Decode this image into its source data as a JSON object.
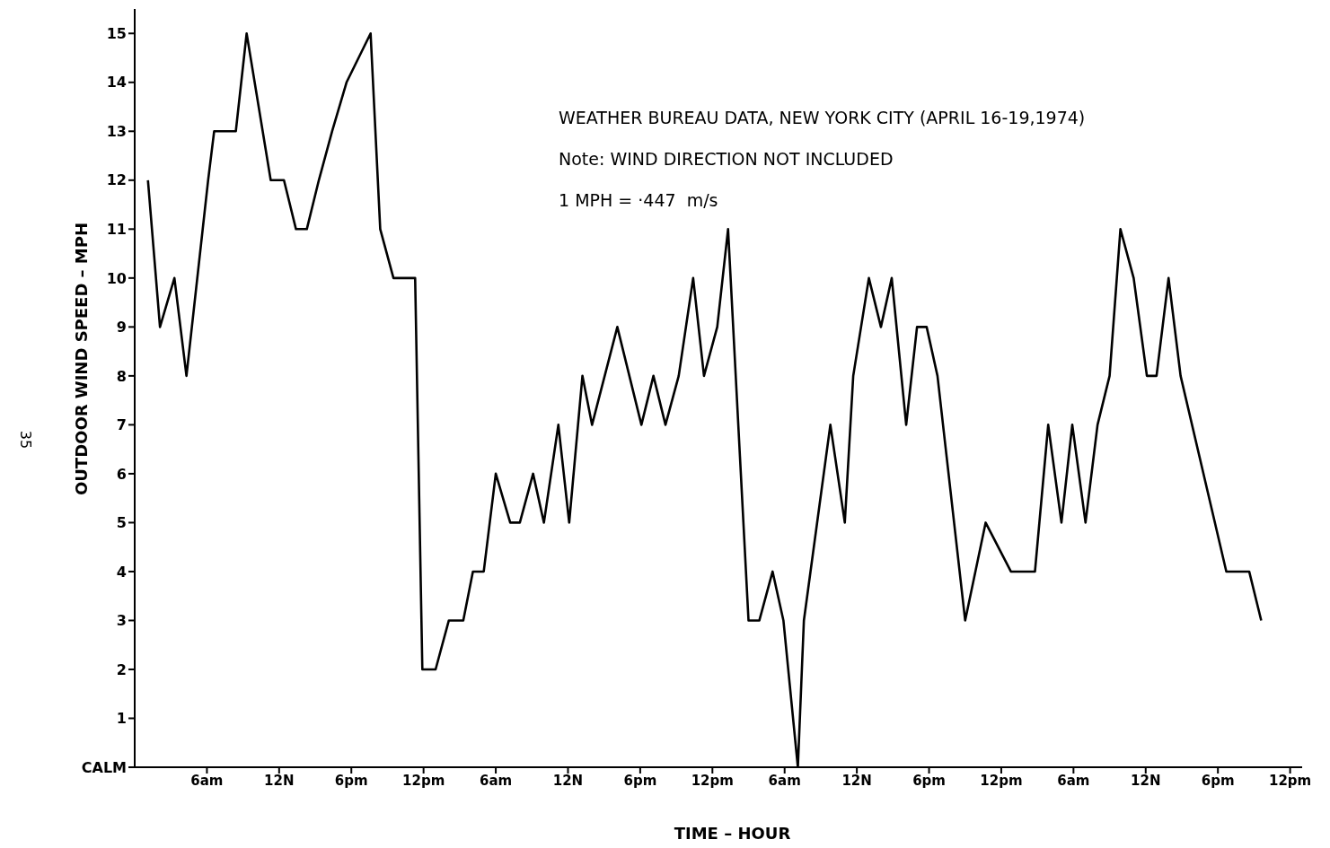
{
  "chart_data": {
    "type": "line",
    "xlabel": "TIME – HOUR",
    "ylabel": "OUTDOOR WIND SPEED – MPH",
    "annotations": [
      "WEATHER BUREAU DATA, NEW YORK CITY (APRIL 16-19,1974)",
      "Note: WIND DIRECTION NOT INCLUDED",
      "1 MPH = ·447  m/s",
      "35"
    ],
    "x": [
      "1974-04-16T01:06",
      "1974-04-16T02:06",
      "1974-04-16T03:18",
      "1974-04-16T04:18",
      "1974-04-16T06:06",
      "1974-04-16T06:36",
      "1974-04-16T08:24",
      "1974-04-16T09:18",
      "1974-04-16T11:18",
      "1974-04-16T12:24",
      "1974-04-16T13:24",
      "1974-04-16T14:18",
      "1974-04-16T15:18",
      "1974-04-16T16:24",
      "1974-04-16T17:36",
      "1974-04-16T19:36",
      "1974-04-16T20:24",
      "1974-04-16T21:30",
      "1974-04-16T23:18",
      "1974-04-16T23:54",
      "1974-04-17T01:00",
      "1974-04-17T02:06",
      "1974-04-17T03:18",
      "1974-04-17T04:06",
      "1974-04-17T05:00",
      "1974-04-17T06:00",
      "1974-04-17T07:12",
      "1974-04-17T08:00",
      "1974-04-17T09:06",
      "1974-04-17T10:00",
      "1974-04-17T11:12",
      "1974-04-17T12:06",
      "1974-04-17T13:12",
      "1974-04-17T14:00",
      "1974-04-17T16:06",
      "1974-04-17T18:06",
      "1974-04-17T19:06",
      "1974-04-17T20:06",
      "1974-04-17T21:12",
      "1974-04-17T22:24",
      "1974-04-17T23:18",
      "1974-04-18T00:24",
      "1974-04-18T01:18",
      "1974-04-18T03:00",
      "1974-04-18T03:54",
      "1974-04-18T05:00",
      "1974-04-18T05:54",
      "1974-04-18T07:06",
      "1974-04-18T07:36",
      "1974-04-18T09:48",
      "1974-04-18T11:00",
      "1974-04-18T11:42",
      "1974-04-18T13:00",
      "1974-04-18T14:00",
      "1974-04-18T14:54",
      "1974-04-18T16:06",
      "1974-04-18T17:00",
      "1974-04-18T17:48",
      "1974-04-18T18:42",
      "1974-04-18T21:00",
      "1974-04-18T22:42",
      "1974-04-19T00:48",
      "1974-04-19T02:48",
      "1974-04-19T03:54",
      "1974-04-19T05:00",
      "1974-04-19T05:54",
      "1974-04-19T07:00",
      "1974-04-19T08:00",
      "1974-04-19T09:00",
      "1974-04-19T09:54",
      "1974-04-19T11:00",
      "1974-04-19T12:06",
      "1974-04-19T12:54",
      "1974-04-19T13:54",
      "1974-04-19T14:54",
      "1974-04-19T18:42",
      "1974-04-19T20:36",
      "1974-04-19T21:36"
    ],
    "series": [
      {
        "color": "#000000",
        "values": [
          12,
          9,
          10,
          8,
          12,
          13,
          13,
          15,
          12,
          12,
          11,
          11,
          12,
          13,
          14,
          15,
          11,
          10,
          10,
          2,
          2,
          3,
          3,
          4,
          4,
          6,
          5,
          5,
          6,
          5,
          7,
          5,
          8,
          7,
          9,
          7,
          8,
          7,
          8,
          10,
          8,
          9,
          11,
          3,
          3,
          4,
          3,
          0,
          3,
          7,
          5,
          8,
          10,
          9,
          10,
          7,
          9,
          9,
          8,
          3,
          5,
          4,
          4,
          7,
          5,
          7,
          5,
          7,
          8,
          11,
          10,
          8,
          8,
          10,
          8,
          4,
          4,
          3
        ]
      }
    ],
    "xlim": [
      "1974-04-16T00:00",
      "1974-04-20T01:00"
    ],
    "ylim": [
      0,
      15.5
    ],
    "xticks": [
      {
        "value": "1974-04-16T06:00",
        "label": "6am"
      },
      {
        "value": "1974-04-16T12:00",
        "label": "12N"
      },
      {
        "value": "1974-04-16T18:00",
        "label": "6pm"
      },
      {
        "value": "1974-04-17T00:00",
        "label": "12pm"
      },
      {
        "value": "1974-04-17T06:00",
        "label": "6am"
      },
      {
        "value": "1974-04-17T12:00",
        "label": "12N"
      },
      {
        "value": "1974-04-17T18:00",
        "label": "6pm"
      },
      {
        "value": "1974-04-18T00:00",
        "label": "12pm"
      },
      {
        "value": "1974-04-18T06:00",
        "label": "6am"
      },
      {
        "value": "1974-04-18T12:00",
        "label": "12N"
      },
      {
        "value": "1974-04-18T18:00",
        "label": "6pm"
      },
      {
        "value": "1974-04-19T00:00",
        "label": "12pm"
      },
      {
        "value": "1974-04-19T06:00",
        "label": "6am"
      },
      {
        "value": "1974-04-19T12:00",
        "label": "12N"
      },
      {
        "value": "1974-04-19T18:00",
        "label": "6pm"
      },
      {
        "value": "1974-04-20T00:00",
        "label": "12pm"
      }
    ],
    "yticks": [
      {
        "value": 0,
        "label": "CALM"
      },
      1,
      2,
      3,
      4,
      5,
      6,
      7,
      8,
      9,
      10,
      11,
      12,
      13,
      14,
      15
    ],
    "grid": false,
    "legend": false,
    "marker": "none",
    "line_style": "solid"
  }
}
